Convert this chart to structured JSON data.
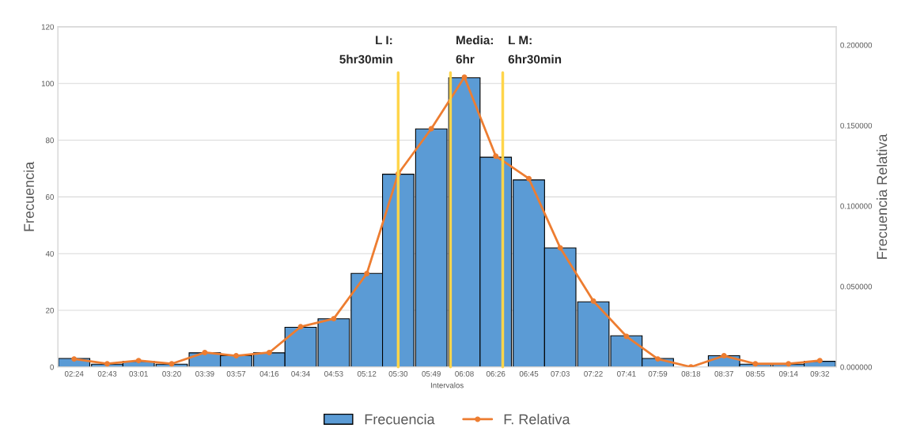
{
  "chart_data": {
    "type": "bar",
    "xlabel": "Intervalos",
    "ylabel": "Frecuencia",
    "y2label": "Frecuencia Relativa",
    "x": [
      2.4,
      2.7167,
      3.0167,
      3.3333,
      3.65,
      3.95,
      4.2667,
      4.5667,
      4.8833,
      5.2,
      5.5,
      5.8167,
      6.1333,
      6.4333,
      6.75,
      7.05,
      7.3667,
      7.6833,
      7.9833,
      8.3,
      8.6167,
      8.9167,
      9.2333,
      9.5333
    ],
    "xlim": [
      2.245,
      9.69
    ],
    "xticks": [
      {
        "value": 2.4,
        "label": "02:24"
      },
      {
        "value": 2.7167,
        "label": "02:43"
      },
      {
        "value": 3.0167,
        "label": "03:01"
      },
      {
        "value": 3.3333,
        "label": "03:20"
      },
      {
        "value": 3.65,
        "label": "03:39"
      },
      {
        "value": 3.95,
        "label": "03:57"
      },
      {
        "value": 4.2667,
        "label": "04:16"
      },
      {
        "value": 4.5667,
        "label": "04:34"
      },
      {
        "value": 4.8833,
        "label": "04:53"
      },
      {
        "value": 5.2,
        "label": "05:12"
      },
      {
        "value": 5.5,
        "label": "05:30"
      },
      {
        "value": 5.8167,
        "label": "05:49"
      },
      {
        "value": 6.1333,
        "label": "06:08"
      },
      {
        "value": 6.4333,
        "label": "06:26"
      },
      {
        "value": 6.75,
        "label": "06:45"
      },
      {
        "value": 7.05,
        "label": "07:03"
      },
      {
        "value": 7.3667,
        "label": "07:22"
      },
      {
        "value": 7.6833,
        "label": "07:41"
      },
      {
        "value": 7.9833,
        "label": "07:59"
      },
      {
        "value": 8.3,
        "label": "08:18"
      },
      {
        "value": 8.6167,
        "label": "08:37"
      },
      {
        "value": 8.9167,
        "label": "08:55"
      },
      {
        "value": 9.2333,
        "label": "09:14"
      },
      {
        "value": 9.5333,
        "label": "09:32"
      }
    ],
    "ylim": [
      0,
      120
    ],
    "yticks": [
      0,
      20,
      40,
      60,
      80,
      100,
      120
    ],
    "y2lim": [
      0,
      0.2113
    ],
    "y2ticks": [
      {
        "value": 0,
        "label": "0.000000"
      },
      {
        "value": 0.05,
        "label": "0.050000"
      },
      {
        "value": 0.1,
        "label": "0.100000"
      },
      {
        "value": 0.15,
        "label": "0.150000"
      },
      {
        "value": 0.2,
        "label": "0.200000"
      }
    ],
    "series": [
      {
        "name": "Frecuencia",
        "color": "#5b9bd5",
        "values": [
          3,
          1,
          2,
          1,
          5,
          4,
          5,
          14,
          17,
          33,
          68,
          84,
          102,
          74,
          66,
          42,
          23,
          11,
          3,
          0,
          4,
          1,
          1,
          2
        ]
      },
      {
        "name": "F. Relativa",
        "type": "line",
        "axis": "y2",
        "color": "#ed7d31",
        "marker": "circle",
        "line_style": "solid",
        "values": [
          0.005,
          0.002,
          0.004,
          0.002,
          0.009,
          0.007,
          0.009,
          0.025,
          0.03,
          0.058,
          0.12,
          0.148,
          0.18,
          0.131,
          0.117,
          0.074,
          0.041,
          0.019,
          0.005,
          0,
          0.007,
          0.002,
          0.002,
          0.004
        ]
      }
    ],
    "ref_lines": [
      {
        "axis": "x",
        "value": 5.5,
        "label": "L I:\n5hr30min",
        "color": "#ffd54a",
        "line_style": "solid"
      },
      {
        "axis": "x",
        "value": 6.0,
        "label": "Media:\n6hr",
        "color": "#ffd54a",
        "line_style": "solid"
      },
      {
        "axis": "x",
        "value": 6.5,
        "label": "L M:\n6hr30min",
        "color": "#ffd54a",
        "line_style": "solid"
      }
    ],
    "grid": "y",
    "legend": "bottom"
  }
}
